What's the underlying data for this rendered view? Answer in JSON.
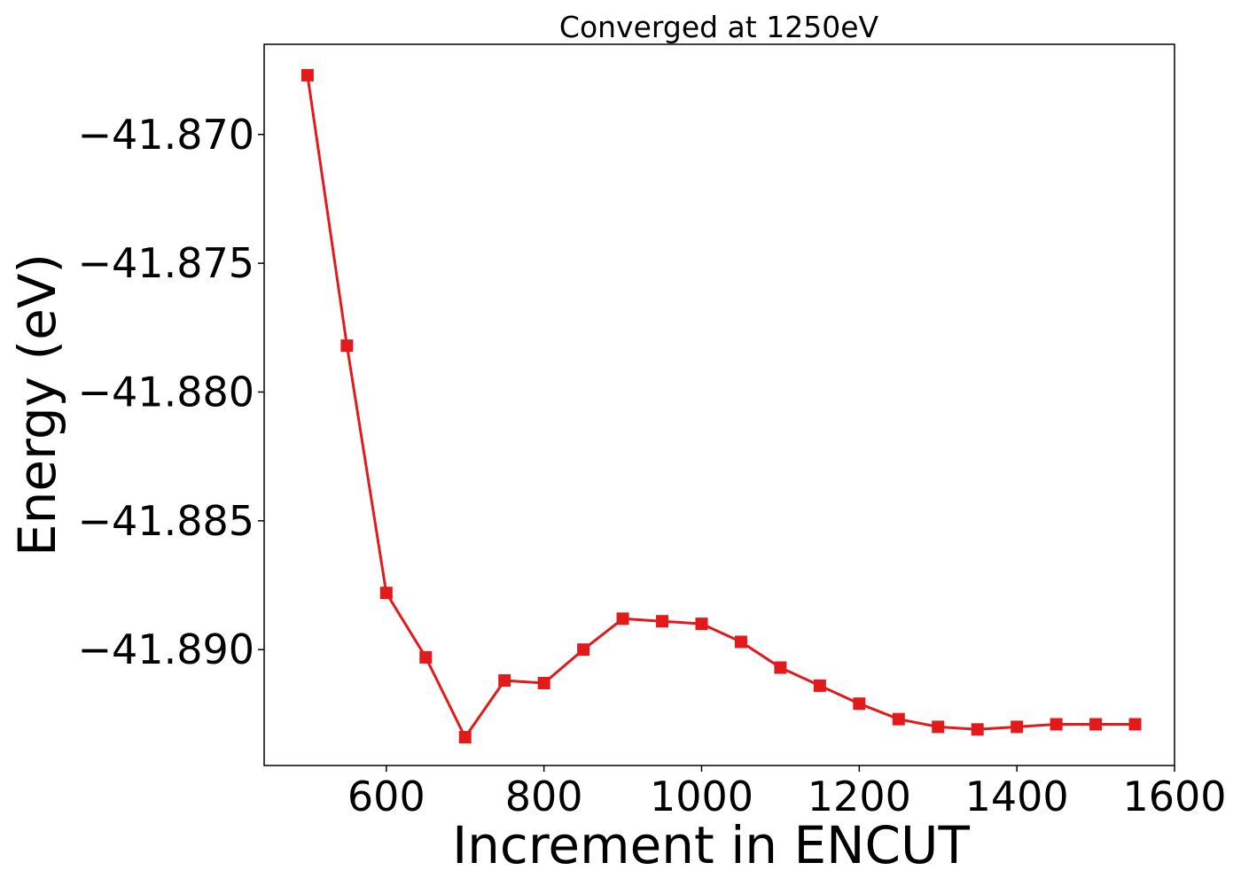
{
  "chart_data": {
    "type": "line",
    "title": "Converged at 1250eV",
    "xlabel": "Increment in ENCUT",
    "ylabel": "Energy (eV)",
    "xlim": [
      445,
      1600
    ],
    "ylim": [
      -41.8945,
      -41.8665
    ],
    "xticks": [
      600,
      800,
      1000,
      1200,
      1400,
      1600
    ],
    "yticks": [
      -41.87,
      -41.875,
      -41.88,
      -41.885,
      -41.89
    ],
    "ytick_labels": [
      "−41.870",
      "−41.875",
      "−41.880",
      "−41.885",
      "−41.890"
    ],
    "grid": false,
    "marker": "square",
    "color": "#e31a1c",
    "series": [
      {
        "x": [
          500,
          550,
          600,
          650,
          700,
          750,
          800,
          850,
          900,
          950,
          1000,
          1050,
          1100,
          1150,
          1200,
          1250,
          1300,
          1350,
          1400,
          1450,
          1500,
          1550
        ],
        "y": [
          -41.8677,
          -41.8782,
          -41.8878,
          -41.8903,
          -41.8934,
          -41.8912,
          -41.8913,
          -41.89,
          -41.8888,
          -41.8889,
          -41.889,
          -41.8897,
          -41.8907,
          -41.8914,
          -41.8921,
          -41.8927,
          -41.893,
          -41.8931,
          -41.893,
          -41.8929,
          -41.8929,
          -41.8929
        ]
      }
    ]
  }
}
